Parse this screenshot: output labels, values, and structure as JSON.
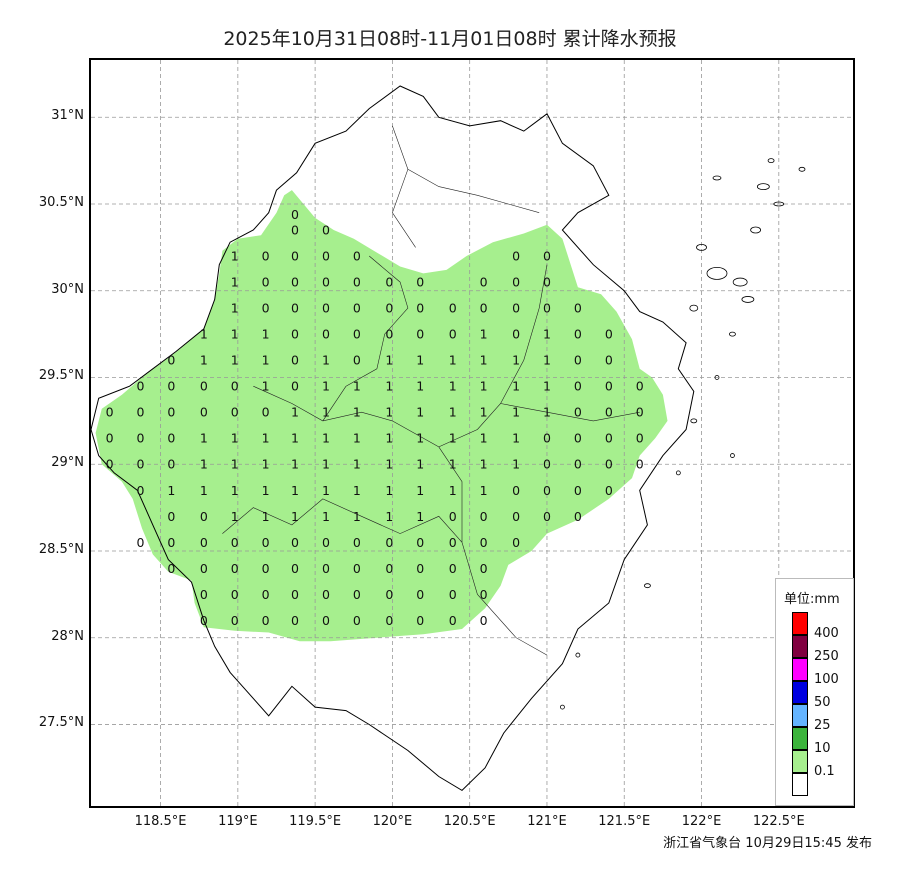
{
  "title": "2025年10月31日08时-11月01日08时 累计降水预报",
  "issuer": "浙江省气象台 10月29日15:45 发布",
  "map": {
    "lon_range": [
      118.05,
      122.98
    ],
    "lat_range": [
      27.03,
      31.33
    ],
    "x_ticks": [
      "118.5°E",
      "119°E",
      "119.5°E",
      "120°E",
      "120.5°E",
      "121°E",
      "121.5°E",
      "122°E",
      "122.5°E"
    ],
    "x_tick_values": [
      118.5,
      119.0,
      119.5,
      120.0,
      120.5,
      121.0,
      121.5,
      122.0,
      122.5
    ],
    "y_ticks": [
      "31°N",
      "30.5°N",
      "30°N",
      "29.5°N",
      "29°N",
      "28.5°N",
      "28°N",
      "27.5°N"
    ],
    "y_tick_values": [
      31.0,
      30.5,
      30.0,
      29.5,
      29.0,
      28.5,
      28.0,
      27.5
    ],
    "grid": true,
    "fill_color": "#a6ef8e"
  },
  "legend": {
    "unit": "单位:mm",
    "levels": [
      {
        "label": "400",
        "color": "#ff0000"
      },
      {
        "label": "250",
        "color": "#800040"
      },
      {
        "label": "100",
        "color": "#ff00ff"
      },
      {
        "label": "50",
        "color": "#0000e0"
      },
      {
        "label": "25",
        "color": "#64b4ff"
      },
      {
        "label": "10",
        "color": "#3cb43c"
      },
      {
        "label": "0.1",
        "color": "#a6ef8e"
      },
      {
        "label": "",
        "color": "#ffffff"
      }
    ]
  },
  "station_values": [
    {
      "lat": 30.44,
      "values": [
        {
          "lon": 119.37,
          "v": "0"
        }
      ]
    },
    {
      "lat": 30.35,
      "values": [
        {
          "lon": 119.37,
          "v": "0"
        },
        {
          "lon": 119.57,
          "v": "0"
        }
      ]
    },
    {
      "lat": 30.2,
      "values": [
        {
          "lon": 118.98,
          "v": "1"
        },
        {
          "lon": 119.18,
          "v": "0"
        },
        {
          "lon": 119.37,
          "v": "0"
        },
        {
          "lon": 119.57,
          "v": "0"
        },
        {
          "lon": 119.77,
          "v": "0"
        },
        {
          "lon": 120.8,
          "v": "0"
        },
        {
          "lon": 121.0,
          "v": "0"
        }
      ]
    },
    {
      "lat": 30.05,
      "values": [
        {
          "lon": 118.98,
          "v": "1"
        },
        {
          "lon": 119.18,
          "v": "0"
        },
        {
          "lon": 119.37,
          "v": "0"
        },
        {
          "lon": 119.57,
          "v": "0"
        },
        {
          "lon": 119.77,
          "v": "0"
        },
        {
          "lon": 119.98,
          "v": "0"
        },
        {
          "lon": 120.18,
          "v": "0"
        },
        {
          "lon": 120.59,
          "v": "0"
        },
        {
          "lon": 120.8,
          "v": "0"
        },
        {
          "lon": 121.0,
          "v": "0"
        }
      ]
    },
    {
      "lat": 29.9,
      "values": [
        {
          "lon": 118.98,
          "v": "1"
        },
        {
          "lon": 119.18,
          "v": "0"
        },
        {
          "lon": 119.37,
          "v": "0"
        },
        {
          "lon": 119.57,
          "v": "0"
        },
        {
          "lon": 119.77,
          "v": "0"
        },
        {
          "lon": 119.98,
          "v": "0"
        },
        {
          "lon": 120.18,
          "v": "0"
        },
        {
          "lon": 120.39,
          "v": "0"
        },
        {
          "lon": 120.59,
          "v": "0"
        },
        {
          "lon": 120.8,
          "v": "0"
        },
        {
          "lon": 121.0,
          "v": "0"
        },
        {
          "lon": 121.2,
          "v": "0"
        }
      ]
    },
    {
      "lat": 29.75,
      "values": [
        {
          "lon": 118.78,
          "v": "1"
        },
        {
          "lon": 118.98,
          "v": "1"
        },
        {
          "lon": 119.18,
          "v": "1"
        },
        {
          "lon": 119.37,
          "v": "0"
        },
        {
          "lon": 119.57,
          "v": "0"
        },
        {
          "lon": 119.77,
          "v": "0"
        },
        {
          "lon": 119.98,
          "v": "0"
        },
        {
          "lon": 120.18,
          "v": "0"
        },
        {
          "lon": 120.39,
          "v": "0"
        },
        {
          "lon": 120.59,
          "v": "1"
        },
        {
          "lon": 120.8,
          "v": "0"
        },
        {
          "lon": 121.0,
          "v": "1"
        },
        {
          "lon": 121.2,
          "v": "0"
        },
        {
          "lon": 121.4,
          "v": "0"
        }
      ]
    },
    {
      "lat": 29.6,
      "values": [
        {
          "lon": 118.57,
          "v": "0"
        },
        {
          "lon": 118.78,
          "v": "1"
        },
        {
          "lon": 118.98,
          "v": "1"
        },
        {
          "lon": 119.18,
          "v": "1"
        },
        {
          "lon": 119.37,
          "v": "0"
        },
        {
          "lon": 119.57,
          "v": "1"
        },
        {
          "lon": 119.77,
          "v": "0"
        },
        {
          "lon": 119.98,
          "v": "1"
        },
        {
          "lon": 120.18,
          "v": "1"
        },
        {
          "lon": 120.39,
          "v": "1"
        },
        {
          "lon": 120.59,
          "v": "1"
        },
        {
          "lon": 120.8,
          "v": "1"
        },
        {
          "lon": 121.0,
          "v": "1"
        },
        {
          "lon": 121.2,
          "v": "0"
        },
        {
          "lon": 121.4,
          "v": "0"
        }
      ]
    },
    {
      "lat": 29.45,
      "values": [
        {
          "lon": 118.37,
          "v": "0"
        },
        {
          "lon": 118.57,
          "v": "0"
        },
        {
          "lon": 118.78,
          "v": "0"
        },
        {
          "lon": 118.98,
          "v": "0"
        },
        {
          "lon": 119.18,
          "v": "1"
        },
        {
          "lon": 119.37,
          "v": "0"
        },
        {
          "lon": 119.57,
          "v": "1"
        },
        {
          "lon": 119.77,
          "v": "1"
        },
        {
          "lon": 119.98,
          "v": "1"
        },
        {
          "lon": 120.18,
          "v": "1"
        },
        {
          "lon": 120.39,
          "v": "1"
        },
        {
          "lon": 120.59,
          "v": "1"
        },
        {
          "lon": 120.8,
          "v": "1"
        },
        {
          "lon": 121.0,
          "v": "1"
        },
        {
          "lon": 121.2,
          "v": "0"
        },
        {
          "lon": 121.4,
          "v": "0"
        },
        {
          "lon": 121.6,
          "v": "0"
        }
      ]
    },
    {
      "lat": 29.3,
      "values": [
        {
          "lon": 118.17,
          "v": "0"
        },
        {
          "lon": 118.37,
          "v": "0"
        },
        {
          "lon": 118.57,
          "v": "0"
        },
        {
          "lon": 118.78,
          "v": "0"
        },
        {
          "lon": 118.98,
          "v": "0"
        },
        {
          "lon": 119.18,
          "v": "0"
        },
        {
          "lon": 119.37,
          "v": "1"
        },
        {
          "lon": 119.57,
          "v": "1"
        },
        {
          "lon": 119.77,
          "v": "1"
        },
        {
          "lon": 119.98,
          "v": "1"
        },
        {
          "lon": 120.18,
          "v": "1"
        },
        {
          "lon": 120.39,
          "v": "1"
        },
        {
          "lon": 120.59,
          "v": "1"
        },
        {
          "lon": 120.8,
          "v": "1"
        },
        {
          "lon": 121.0,
          "v": "1"
        },
        {
          "lon": 121.2,
          "v": "0"
        },
        {
          "lon": 121.4,
          "v": "0"
        },
        {
          "lon": 121.6,
          "v": "0"
        }
      ]
    },
    {
      "lat": 29.15,
      "values": [
        {
          "lon": 118.17,
          "v": "0"
        },
        {
          "lon": 118.37,
          "v": "0"
        },
        {
          "lon": 118.57,
          "v": "0"
        },
        {
          "lon": 118.78,
          "v": "1"
        },
        {
          "lon": 118.98,
          "v": "1"
        },
        {
          "lon": 119.18,
          "v": "1"
        },
        {
          "lon": 119.37,
          "v": "1"
        },
        {
          "lon": 119.57,
          "v": "1"
        },
        {
          "lon": 119.77,
          "v": "1"
        },
        {
          "lon": 119.98,
          "v": "1"
        },
        {
          "lon": 120.18,
          "v": "1"
        },
        {
          "lon": 120.39,
          "v": "1"
        },
        {
          "lon": 120.59,
          "v": "1"
        },
        {
          "lon": 120.8,
          "v": "1"
        },
        {
          "lon": 121.0,
          "v": "0"
        },
        {
          "lon": 121.2,
          "v": "0"
        },
        {
          "lon": 121.4,
          "v": "0"
        },
        {
          "lon": 121.6,
          "v": "0"
        }
      ]
    },
    {
      "lat": 29.0,
      "values": [
        {
          "lon": 118.17,
          "v": "0"
        },
        {
          "lon": 118.37,
          "v": "0"
        },
        {
          "lon": 118.57,
          "v": "0"
        },
        {
          "lon": 118.78,
          "v": "1"
        },
        {
          "lon": 118.98,
          "v": "1"
        },
        {
          "lon": 119.18,
          "v": "1"
        },
        {
          "lon": 119.37,
          "v": "1"
        },
        {
          "lon": 119.57,
          "v": "1"
        },
        {
          "lon": 119.77,
          "v": "1"
        },
        {
          "lon": 119.98,
          "v": "1"
        },
        {
          "lon": 120.18,
          "v": "1"
        },
        {
          "lon": 120.39,
          "v": "1"
        },
        {
          "lon": 120.59,
          "v": "1"
        },
        {
          "lon": 120.8,
          "v": "1"
        },
        {
          "lon": 121.0,
          "v": "0"
        },
        {
          "lon": 121.2,
          "v": "0"
        },
        {
          "lon": 121.4,
          "v": "0"
        },
        {
          "lon": 121.6,
          "v": "0"
        }
      ]
    },
    {
      "lat": 28.85,
      "values": [
        {
          "lon": 118.37,
          "v": "0"
        },
        {
          "lon": 118.57,
          "v": "1"
        },
        {
          "lon": 118.78,
          "v": "1"
        },
        {
          "lon": 118.98,
          "v": "1"
        },
        {
          "lon": 119.18,
          "v": "1"
        },
        {
          "lon": 119.37,
          "v": "1"
        },
        {
          "lon": 119.57,
          "v": "1"
        },
        {
          "lon": 119.77,
          "v": "1"
        },
        {
          "lon": 119.98,
          "v": "1"
        },
        {
          "lon": 120.18,
          "v": "1"
        },
        {
          "lon": 120.39,
          "v": "1"
        },
        {
          "lon": 120.59,
          "v": "1"
        },
        {
          "lon": 120.8,
          "v": "0"
        },
        {
          "lon": 121.0,
          "v": "0"
        },
        {
          "lon": 121.2,
          "v": "0"
        },
        {
          "lon": 121.4,
          "v": "0"
        }
      ]
    },
    {
      "lat": 28.7,
      "values": [
        {
          "lon": 118.57,
          "v": "0"
        },
        {
          "lon": 118.78,
          "v": "0"
        },
        {
          "lon": 118.98,
          "v": "1"
        },
        {
          "lon": 119.18,
          "v": "1"
        },
        {
          "lon": 119.37,
          "v": "1"
        },
        {
          "lon": 119.57,
          "v": "1"
        },
        {
          "lon": 119.77,
          "v": "1"
        },
        {
          "lon": 119.98,
          "v": "1"
        },
        {
          "lon": 120.18,
          "v": "1"
        },
        {
          "lon": 120.39,
          "v": "0"
        },
        {
          "lon": 120.59,
          "v": "0"
        },
        {
          "lon": 120.8,
          "v": "0"
        },
        {
          "lon": 121.0,
          "v": "0"
        },
        {
          "lon": 121.2,
          "v": "0"
        }
      ]
    },
    {
      "lat": 28.55,
      "values": [
        {
          "lon": 118.37,
          "v": "0"
        },
        {
          "lon": 118.57,
          "v": "0"
        },
        {
          "lon": 118.78,
          "v": "0"
        },
        {
          "lon": 118.98,
          "v": "0"
        },
        {
          "lon": 119.18,
          "v": "0"
        },
        {
          "lon": 119.37,
          "v": "0"
        },
        {
          "lon": 119.57,
          "v": "0"
        },
        {
          "lon": 119.77,
          "v": "0"
        },
        {
          "lon": 119.98,
          "v": "0"
        },
        {
          "lon": 120.18,
          "v": "0"
        },
        {
          "lon": 120.39,
          "v": "0"
        },
        {
          "lon": 120.59,
          "v": "0"
        },
        {
          "lon": 120.8,
          "v": "0"
        }
      ]
    },
    {
      "lat": 28.4,
      "values": [
        {
          "lon": 118.57,
          "v": "0"
        },
        {
          "lon": 118.78,
          "v": "0"
        },
        {
          "lon": 118.98,
          "v": "0"
        },
        {
          "lon": 119.18,
          "v": "0"
        },
        {
          "lon": 119.37,
          "v": "0"
        },
        {
          "lon": 119.57,
          "v": "0"
        },
        {
          "lon": 119.77,
          "v": "0"
        },
        {
          "lon": 119.98,
          "v": "0"
        },
        {
          "lon": 120.18,
          "v": "0"
        },
        {
          "lon": 120.39,
          "v": "0"
        },
        {
          "lon": 120.59,
          "v": "0"
        }
      ]
    },
    {
      "lat": 28.25,
      "values": [
        {
          "lon": 118.78,
          "v": "0"
        },
        {
          "lon": 118.98,
          "v": "0"
        },
        {
          "lon": 119.18,
          "v": "0"
        },
        {
          "lon": 119.37,
          "v": "0"
        },
        {
          "lon": 119.57,
          "v": "0"
        },
        {
          "lon": 119.77,
          "v": "0"
        },
        {
          "lon": 119.98,
          "v": "0"
        },
        {
          "lon": 120.18,
          "v": "0"
        },
        {
          "lon": 120.39,
          "v": "0"
        },
        {
          "lon": 120.59,
          "v": "0"
        }
      ]
    },
    {
      "lat": 28.1,
      "values": [
        {
          "lon": 118.78,
          "v": "0"
        },
        {
          "lon": 118.98,
          "v": "0"
        },
        {
          "lon": 119.18,
          "v": "0"
        },
        {
          "lon": 119.37,
          "v": "0"
        },
        {
          "lon": 119.57,
          "v": "0"
        },
        {
          "lon": 119.77,
          "v": "0"
        },
        {
          "lon": 119.98,
          "v": "0"
        },
        {
          "lon": 120.18,
          "v": "0"
        },
        {
          "lon": 120.39,
          "v": "0"
        },
        {
          "lon": 120.59,
          "v": "0"
        }
      ]
    }
  ]
}
